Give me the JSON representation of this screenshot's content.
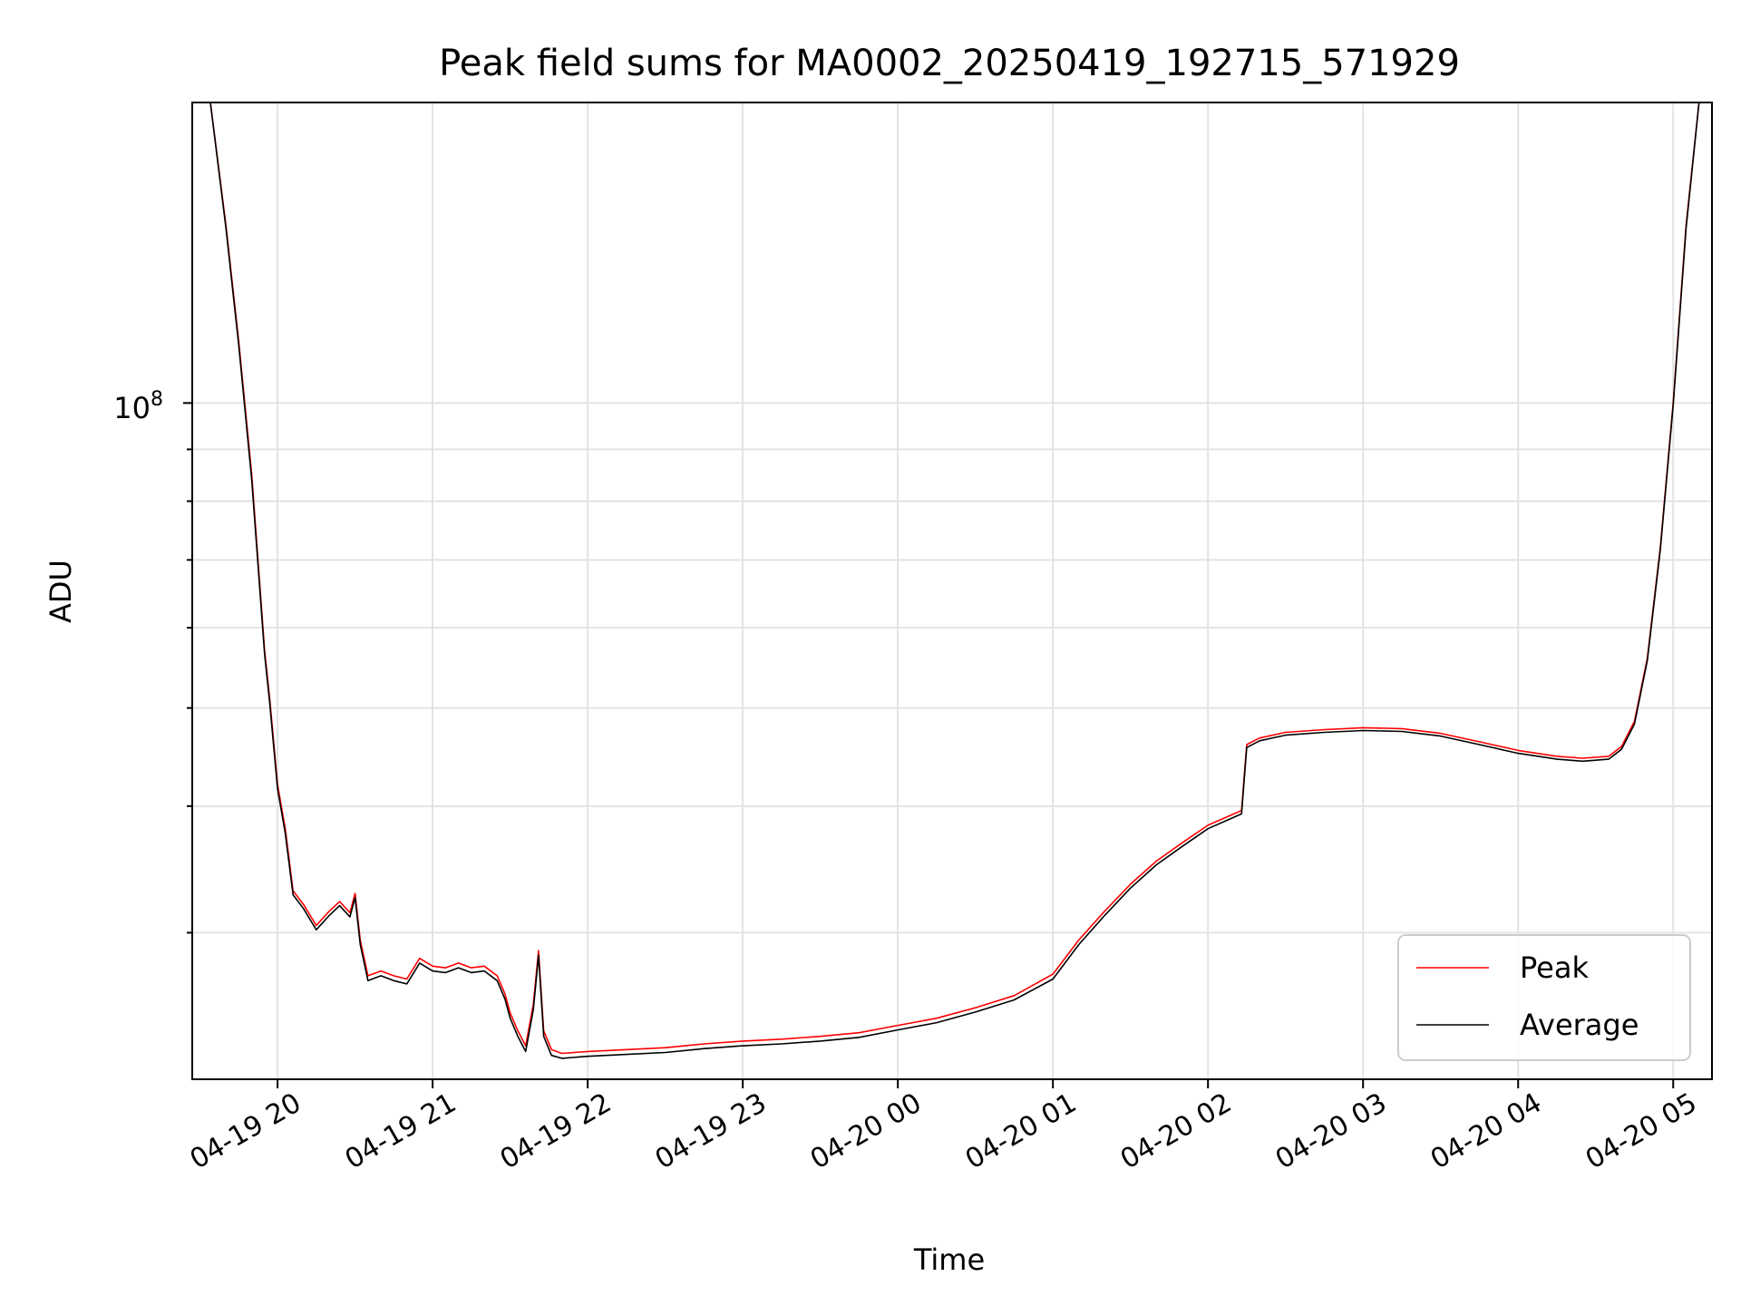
{
  "chart_data": {
    "type": "line",
    "title": "Peak field sums for MA0002_20250419_192715_571929",
    "xlabel": "Time",
    "ylabel": "ADU",
    "y_scale": "log",
    "x_range": [
      "2025-04-19 19:27",
      "2025-04-20 05:15"
    ],
    "ylim": [
      21500000,
      198000000
    ],
    "x_tick_labels": [
      "04-19 20",
      "04-19 21",
      "04-19 22",
      "04-19 23",
      "04-20 00",
      "04-20 01",
      "04-20 02",
      "04-20 03",
      "04-20 04",
      "04-20 05"
    ],
    "y_tick_label": {
      "base": "10",
      "exponent": "8",
      "value": 100000000
    },
    "grid": true,
    "legend_position": "lower-right",
    "series": [
      {
        "name": "Peak",
        "color": "#ff0000",
        "points": [
          [
            "2025-04-19 19:27",
            198000000
          ],
          [
            "2025-04-19 19:34",
            198000000
          ],
          [
            "2025-04-19 19:40",
            150000000
          ],
          [
            "2025-04-19 19:45",
            115000000
          ],
          [
            "2025-04-19 19:50",
            85000000
          ],
          [
            "2025-04-19 19:55",
            57000000
          ],
          [
            "2025-04-19 19:57",
            51000000
          ],
          [
            "2025-04-19 20:00",
            42000000
          ],
          [
            "2025-04-19 20:03",
            38000000
          ],
          [
            "2025-04-19 20:06",
            33000000
          ],
          [
            "2025-04-19 20:10",
            32000000
          ],
          [
            "2025-04-19 20:15",
            30500000
          ],
          [
            "2025-04-19 20:20",
            31500000
          ],
          [
            "2025-04-19 20:24",
            32200000
          ],
          [
            "2025-04-19 20:28",
            31400000
          ],
          [
            "2025-04-19 20:30",
            32800000
          ],
          [
            "2025-04-19 20:32",
            29500000
          ],
          [
            "2025-04-19 20:35",
            27200000
          ],
          [
            "2025-04-19 20:40",
            27500000
          ],
          [
            "2025-04-19 20:45",
            27200000
          ],
          [
            "2025-04-19 20:50",
            27000000
          ],
          [
            "2025-04-19 20:55",
            28300000
          ],
          [
            "2025-04-19 21:00",
            27800000
          ],
          [
            "2025-04-19 21:05",
            27700000
          ],
          [
            "2025-04-19 21:10",
            28000000
          ],
          [
            "2025-04-19 21:15",
            27700000
          ],
          [
            "2025-04-19 21:20",
            27800000
          ],
          [
            "2025-04-19 21:25",
            27200000
          ],
          [
            "2025-04-19 21:28",
            26100000
          ],
          [
            "2025-04-19 21:30",
            25000000
          ],
          [
            "2025-04-19 21:33",
            24000000
          ],
          [
            "2025-04-19 21:36",
            23200000
          ],
          [
            "2025-04-19 21:39",
            25500000
          ],
          [
            "2025-04-19 21:41",
            28800000
          ],
          [
            "2025-04-19 21:43",
            24000000
          ],
          [
            "2025-04-19 21:46",
            23000000
          ],
          [
            "2025-04-19 21:50",
            22800000
          ],
          [
            "2025-04-19 22:00",
            22900000
          ],
          [
            "2025-04-19 22:15",
            23000000
          ],
          [
            "2025-04-19 22:30",
            23100000
          ],
          [
            "2025-04-19 22:45",
            23300000
          ],
          [
            "2025-04-19 23:00",
            23450000
          ],
          [
            "2025-04-19 23:15",
            23550000
          ],
          [
            "2025-04-19 23:30",
            23700000
          ],
          [
            "2025-04-19 23:45",
            23900000
          ],
          [
            "2025-04-20 00:00",
            24300000
          ],
          [
            "2025-04-20 00:15",
            24700000
          ],
          [
            "2025-04-20 00:30",
            25300000
          ],
          [
            "2025-04-20 00:45",
            26000000
          ],
          [
            "2025-04-20 01:00",
            27300000
          ],
          [
            "2025-04-20 01:10",
            29500000
          ],
          [
            "2025-04-20 01:20",
            31500000
          ],
          [
            "2025-04-20 01:30",
            33500000
          ],
          [
            "2025-04-20 01:40",
            35300000
          ],
          [
            "2025-04-20 01:50",
            36800000
          ],
          [
            "2025-04-20 02:00",
            38300000
          ],
          [
            "2025-04-20 02:10",
            39300000
          ],
          [
            "2025-04-20 02:13",
            39600000
          ],
          [
            "2025-04-20 02:15",
            46000000
          ],
          [
            "2025-04-20 02:20",
            46700000
          ],
          [
            "2025-04-20 02:30",
            47300000
          ],
          [
            "2025-04-20 02:45",
            47600000
          ],
          [
            "2025-04-20 03:00",
            47800000
          ],
          [
            "2025-04-20 03:15",
            47700000
          ],
          [
            "2025-04-20 03:30",
            47200000
          ],
          [
            "2025-04-20 03:45",
            46300000
          ],
          [
            "2025-04-20 04:00",
            45400000
          ],
          [
            "2025-04-20 04:15",
            44800000
          ],
          [
            "2025-04-20 04:25",
            44600000
          ],
          [
            "2025-04-20 04:35",
            44800000
          ],
          [
            "2025-04-20 04:40",
            45800000
          ],
          [
            "2025-04-20 04:45",
            48500000
          ],
          [
            "2025-04-20 04:50",
            56000000
          ],
          [
            "2025-04-20 04:55",
            72000000
          ],
          [
            "2025-04-20 05:00",
            100000000
          ],
          [
            "2025-04-20 05:05",
            150000000
          ],
          [
            "2025-04-20 05:10",
            198000000
          ],
          [
            "2025-04-20 05:15",
            198000000
          ]
        ]
      },
      {
        "name": "Average",
        "color": "#000000",
        "points": [
          [
            "2025-04-19 19:27",
            198000000
          ],
          [
            "2025-04-19 19:34",
            198000000
          ],
          [
            "2025-04-19 19:40",
            149000000
          ],
          [
            "2025-04-19 19:45",
            114000000
          ],
          [
            "2025-04-19 19:50",
            84000000
          ],
          [
            "2025-04-19 19:55",
            56500000
          ],
          [
            "2025-04-19 19:57",
            50500000
          ],
          [
            "2025-04-19 20:00",
            41600000
          ],
          [
            "2025-04-19 20:03",
            37600000
          ],
          [
            "2025-04-19 20:06",
            32700000
          ],
          [
            "2025-04-19 20:10",
            31700000
          ],
          [
            "2025-04-19 20:15",
            30200000
          ],
          [
            "2025-04-19 20:20",
            31200000
          ],
          [
            "2025-04-19 20:24",
            31900000
          ],
          [
            "2025-04-19 20:28",
            31100000
          ],
          [
            "2025-04-19 20:30",
            32500000
          ],
          [
            "2025-04-19 20:32",
            29200000
          ],
          [
            "2025-04-19 20:35",
            26900000
          ],
          [
            "2025-04-19 20:40",
            27200000
          ],
          [
            "2025-04-19 20:45",
            26900000
          ],
          [
            "2025-04-19 20:50",
            26700000
          ],
          [
            "2025-04-19 20:55",
            28000000
          ],
          [
            "2025-04-19 21:00",
            27500000
          ],
          [
            "2025-04-19 21:05",
            27400000
          ],
          [
            "2025-04-19 21:10",
            27700000
          ],
          [
            "2025-04-19 21:15",
            27400000
          ],
          [
            "2025-04-19 21:20",
            27500000
          ],
          [
            "2025-04-19 21:25",
            26900000
          ],
          [
            "2025-04-19 21:28",
            25800000
          ],
          [
            "2025-04-19 21:30",
            24700000
          ],
          [
            "2025-04-19 21:33",
            23700000
          ],
          [
            "2025-04-19 21:36",
            22900000
          ],
          [
            "2025-04-19 21:39",
            25200000
          ],
          [
            "2025-04-19 21:41",
            28500000
          ],
          [
            "2025-04-19 21:43",
            23700000
          ],
          [
            "2025-04-19 21:46",
            22700000
          ],
          [
            "2025-04-19 21:50",
            22550000
          ],
          [
            "2025-04-19 22:00",
            22650000
          ],
          [
            "2025-04-19 22:15",
            22750000
          ],
          [
            "2025-04-19 22:30",
            22850000
          ],
          [
            "2025-04-19 22:45",
            23050000
          ],
          [
            "2025-04-19 23:00",
            23200000
          ],
          [
            "2025-04-19 23:15",
            23300000
          ],
          [
            "2025-04-19 23:30",
            23450000
          ],
          [
            "2025-04-19 23:45",
            23650000
          ],
          [
            "2025-04-20 00:00",
            24050000
          ],
          [
            "2025-04-20 00:15",
            24450000
          ],
          [
            "2025-04-20 00:30",
            25050000
          ],
          [
            "2025-04-20 00:45",
            25750000
          ],
          [
            "2025-04-20 01:00",
            27000000
          ],
          [
            "2025-04-20 01:10",
            29200000
          ],
          [
            "2025-04-20 01:20",
            31200000
          ],
          [
            "2025-04-20 01:30",
            33200000
          ],
          [
            "2025-04-20 01:40",
            35000000
          ],
          [
            "2025-04-20 01:50",
            36500000
          ],
          [
            "2025-04-20 02:00",
            38000000
          ],
          [
            "2025-04-20 02:10",
            39000000
          ],
          [
            "2025-04-20 02:13",
            39300000
          ],
          [
            "2025-04-20 02:15",
            45700000
          ],
          [
            "2025-04-20 02:20",
            46400000
          ],
          [
            "2025-04-20 02:30",
            47000000
          ],
          [
            "2025-04-20 02:45",
            47300000
          ],
          [
            "2025-04-20 03:00",
            47500000
          ],
          [
            "2025-04-20 03:15",
            47400000
          ],
          [
            "2025-04-20 03:30",
            46900000
          ],
          [
            "2025-04-20 03:45",
            46000000
          ],
          [
            "2025-04-20 04:00",
            45100000
          ],
          [
            "2025-04-20 04:15",
            44500000
          ],
          [
            "2025-04-20 04:25",
            44300000
          ],
          [
            "2025-04-20 04:35",
            44500000
          ],
          [
            "2025-04-20 04:40",
            45500000
          ],
          [
            "2025-04-20 04:45",
            48200000
          ],
          [
            "2025-04-20 04:50",
            55700000
          ],
          [
            "2025-04-20 04:55",
            71600000
          ],
          [
            "2025-04-20 05:00",
            99500000
          ],
          [
            "2025-04-20 05:05",
            149000000
          ],
          [
            "2025-04-20 05:10",
            198000000
          ],
          [
            "2025-04-20 05:15",
            198000000
          ]
        ]
      }
    ]
  }
}
